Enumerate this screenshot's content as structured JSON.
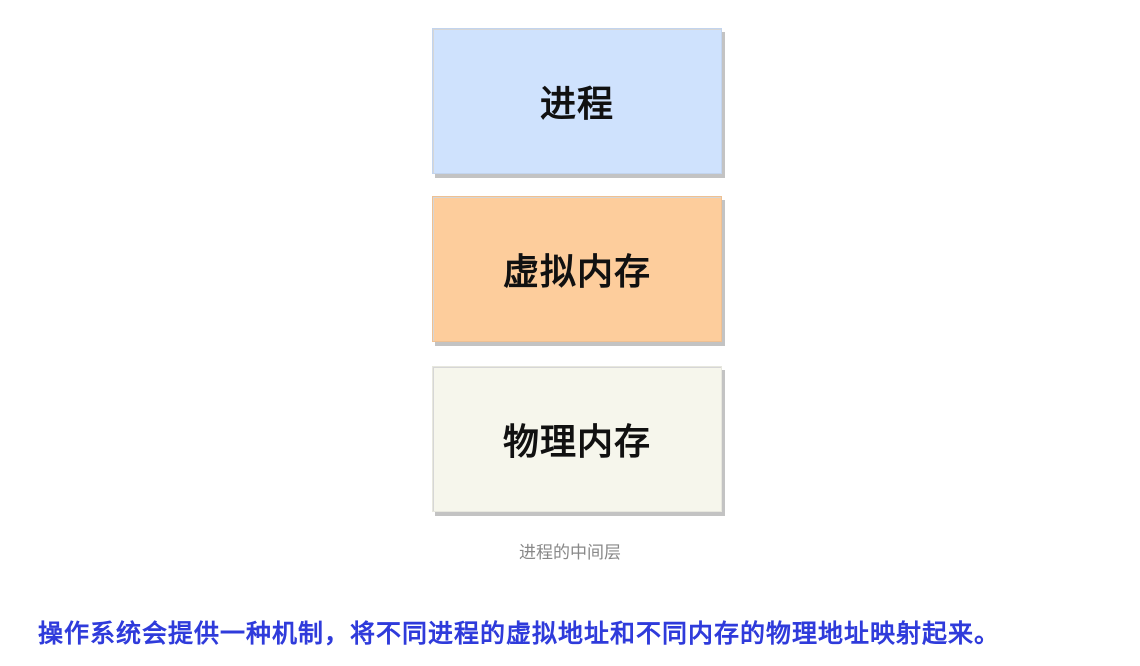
{
  "diagram": {
    "boxes": [
      {
        "label": "进程",
        "color": "#cfe2fd"
      },
      {
        "label": "虚拟内存",
        "color": "#fdcd9c"
      },
      {
        "label": "物理内存",
        "color": "#f6f6ec"
      }
    ],
    "caption": "进程的中间层"
  },
  "statement": {
    "text": "操作系统会提供一种机制，将不同进程的虚拟地址和不同内存的物理地址映射起来。",
    "color": "#2f3bdb"
  }
}
